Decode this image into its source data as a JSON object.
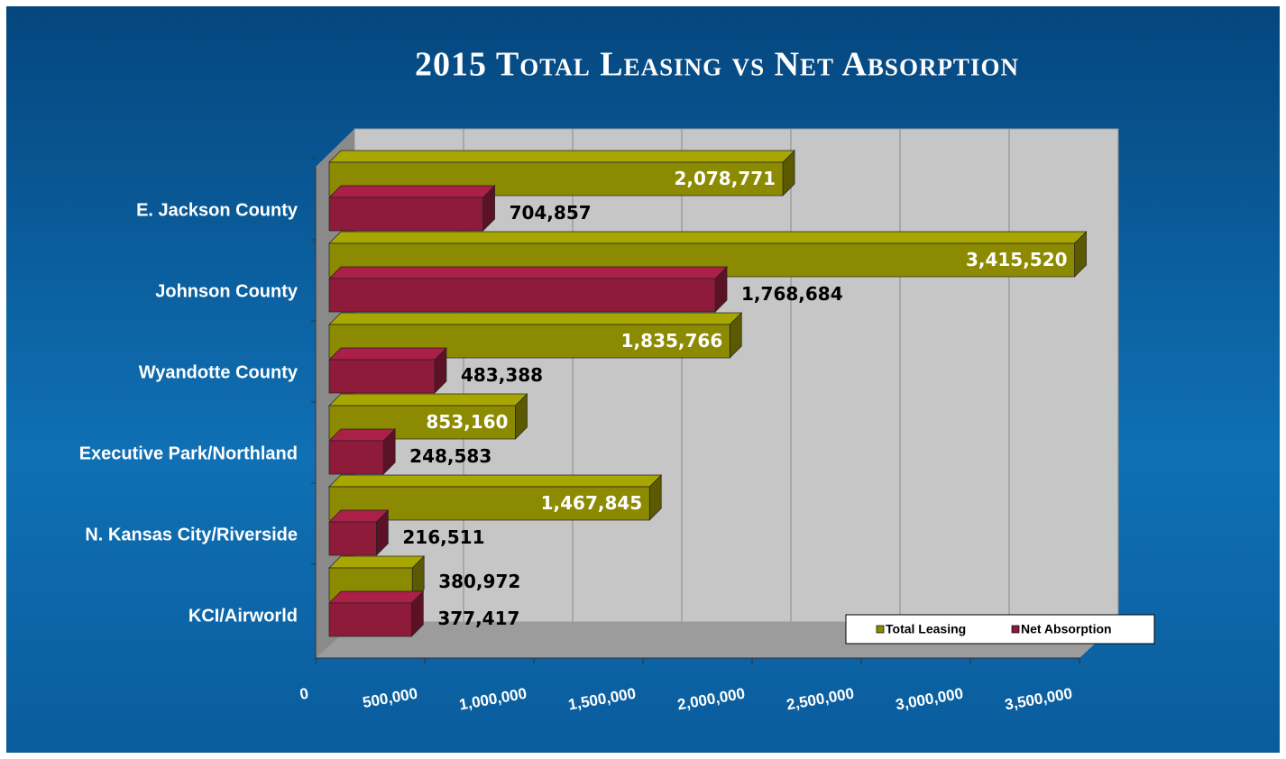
{
  "chart_data": {
    "type": "bar",
    "orientation": "horizontal",
    "title": "2015 Total Leasing vs Net Absorption",
    "categories": [
      "E. Jackson County",
      "Johnson County",
      "Wyandotte County",
      "Executive Park/Northland",
      "N. Kansas City/Riverside",
      "KCI/Airworld"
    ],
    "series": [
      {
        "name": "Total Leasing",
        "color": "#8c8a00",
        "values": [
          2078771,
          3415520,
          1835766,
          853160,
          1467845,
          380972
        ],
        "value_labels": [
          "2,078,771",
          "3,415,520",
          "1,835,766",
          "853,160",
          "1,467,845",
          "380,972"
        ]
      },
      {
        "name": "Net Absorption",
        "color": "#8e1b3a",
        "values": [
          704857,
          1768684,
          483388,
          248583,
          216511,
          377417
        ],
        "value_labels": [
          "704,857",
          "1,768,684",
          "483,388",
          "248,583",
          "216,511",
          "377,417"
        ]
      }
    ],
    "xlim": [
      0,
      3500000
    ],
    "xticks": [
      0,
      {
        "value": 500000,
        "label": "500,000"
      },
      {
        "value": 1000000,
        "label": "1,000,000"
      },
      {
        "value": 1500000,
        "label": "1,500,000"
      },
      {
        "value": 2000000,
        "label": "2,000,000"
      },
      {
        "value": 2500000,
        "label": "2,500,000"
      },
      {
        "value": 3000000,
        "label": "3,000,000"
      },
      {
        "value": 3500000,
        "label": "3,500,000"
      }
    ],
    "grid": true,
    "legend": "lower right"
  }
}
